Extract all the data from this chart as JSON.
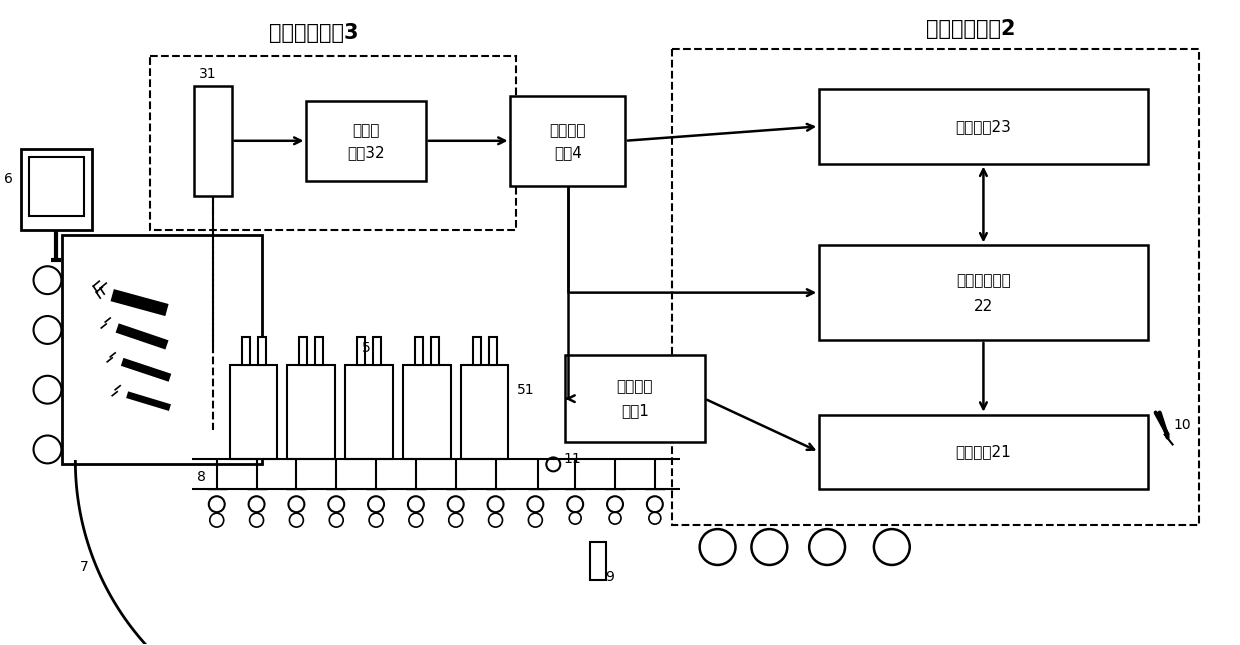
{
  "bg_color": "#ffffff",
  "fig_width": 12.4,
  "fig_height": 6.45,
  "unit3_title": "图像采集单刔3",
  "unit2_title": "跟踪监控单刔2",
  "label_31": "31",
  "label_32": "图像采\n集卡32",
  "label_4_l1": "图像处理",
  "label_4_l2": "单刔4",
  "label_23": "校准模垅23",
  "label_22_l1": "位置跟踪模块",
  "label_22_l2": "22",
  "label_21": "计数模垅21",
  "label_unit1_l1": "位移检测",
  "label_unit1_l2": "单刔1",
  "label_5": "5",
  "label_51": "51",
  "label_11": "11",
  "label_6": "6",
  "label_7": "7",
  "label_8": "8",
  "label_9": "9",
  "label_10": "10"
}
